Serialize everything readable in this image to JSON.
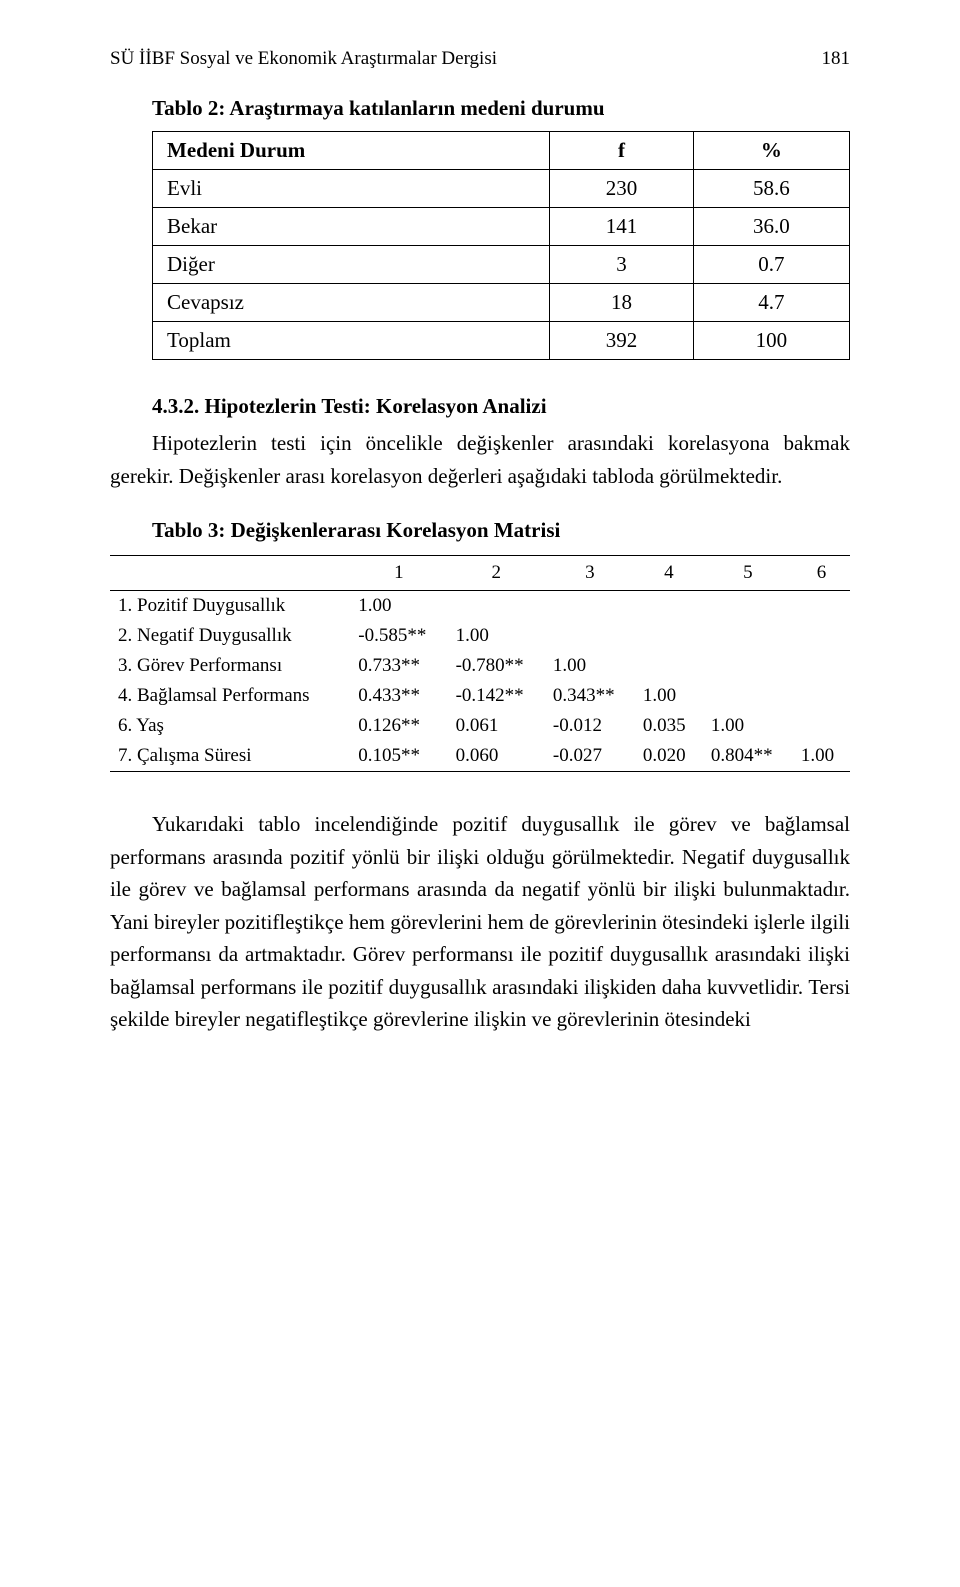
{
  "header": {
    "journal": "SÜ İİBF Sosyal ve Ekonomik Araştırmalar Dergisi",
    "page_number": "181"
  },
  "table2": {
    "caption": "Tablo 2: Araştırmaya katılanların medeni durumu",
    "columns": [
      "Medeni Durum",
      "f",
      "%"
    ],
    "rows": [
      [
        "Evli",
        "230",
        "58.6"
      ],
      [
        "Bekar",
        "141",
        "36.0"
      ],
      [
        "Diğer",
        "3",
        "0.7"
      ],
      [
        "Cevapsız",
        "18",
        "4.7"
      ],
      [
        "Toplam",
        "392",
        "100"
      ]
    ]
  },
  "section": {
    "heading": "4.3.2. Hipotezlerin Testi: Korelasyon Analizi",
    "para1": "Hipotezlerin testi için öncelikle değişkenler arasındaki korelasyona bakmak gerekir. Değişkenler arası korelasyon değerleri aşağıdaki tabloda görülmektedir."
  },
  "table3": {
    "caption": "Tablo 3: Değişkenlerarası Korelasyon Matrisi",
    "headers": [
      "",
      "1",
      "2",
      "3",
      "4",
      "5",
      "6"
    ],
    "rows": [
      [
        "1. Pozitif Duygusallık",
        "1.00",
        "",
        "",
        "",
        "",
        ""
      ],
      [
        "2. Negatif Duygusallık",
        "-0.585**",
        "1.00",
        "",
        "",
        "",
        ""
      ],
      [
        "3. Görev Performansı",
        "0.733**",
        "-0.780**",
        "1.00",
        "",
        "",
        ""
      ],
      [
        "4. Bağlamsal Performans",
        "0.433**",
        "-0.142**",
        "0.343**",
        "1.00",
        "",
        ""
      ],
      [
        "6. Yaş",
        "0.126**",
        "0.061",
        "-0.012",
        "0.035",
        "1.00",
        ""
      ],
      [
        "7. Çalışma Süresi",
        "0.105**",
        "0.060",
        "-0.027",
        "0.020",
        "0.804**",
        "1.00"
      ]
    ]
  },
  "discussion": {
    "para": "Yukarıdaki tablo incelendiğinde pozitif duygusallık ile görev ve bağlamsal performans arasında pozitif yönlü bir ilişki olduğu görülmektedir. Negatif duygusallık ile görev ve bağlamsal performans arasında da negatif yönlü bir ilişki bulunmaktadır. Yani bireyler pozitifleştikçe hem görevlerini hem de görevlerinin ötesindeki işlerle ilgili performansı da artmaktadır. Görev performansı ile pozitif duygusallık arasındaki ilişki bağlamsal performans ile pozitif duygusallık arasındaki ilişkiden daha kuvvetlidir. Tersi şekilde bireyler negatifleştikçe görevlerine ilişkin ve görevlerinin ötesindeki"
  }
}
